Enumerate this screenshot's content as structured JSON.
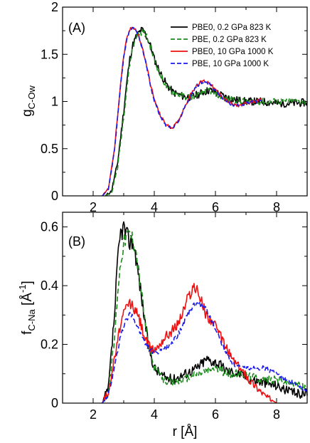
{
  "chart_data": [
    {
      "type": "line",
      "panel_label": "(A)",
      "ylabel_main": "g",
      "ylabel_sub": "C-Ow",
      "xlim": [
        1,
        9
      ],
      "ylim": [
        0,
        2
      ],
      "xticks": [
        2,
        4,
        6,
        8
      ],
      "yticks": [
        0,
        0.5,
        1,
        1.5,
        2
      ],
      "ytick_labels": [
        "0",
        "0.5",
        "1",
        "1.5",
        "2"
      ],
      "legend_position": "top-right",
      "series": [
        {
          "name": "PBE0, 0.2 GPa 823 K",
          "color": "#000000",
          "dash": "solid",
          "noise": 0.03,
          "x": [
            2.4,
            2.6,
            2.8,
            3.0,
            3.1,
            3.2,
            3.3,
            3.4,
            3.5,
            3.6,
            3.7,
            3.8,
            3.9,
            4.0,
            4.2,
            4.4,
            4.6,
            4.8,
            5.0,
            5.2,
            5.4,
            5.6,
            5.8,
            6.0,
            6.3,
            6.6,
            7.0,
            7.5,
            8.0,
            8.5,
            9.0
          ],
          "y": [
            0.0,
            0.05,
            0.35,
            0.9,
            1.2,
            1.45,
            1.6,
            1.68,
            1.73,
            1.76,
            1.72,
            1.65,
            1.57,
            1.45,
            1.3,
            1.18,
            1.1,
            1.07,
            1.05,
            1.05,
            1.07,
            1.1,
            1.12,
            1.1,
            1.05,
            1.02,
            1.0,
            1.0,
            0.98,
            0.98,
            0.99
          ]
        },
        {
          "name": "PBE, 0.2 GPa 823 K",
          "color": "#1a8a1a",
          "dash": "dashed",
          "noise": 0.025,
          "x": [
            2.4,
            2.6,
            2.8,
            3.0,
            3.1,
            3.2,
            3.3,
            3.4,
            3.5,
            3.6,
            3.7,
            3.8,
            3.9,
            4.0,
            4.2,
            4.4,
            4.6,
            4.8,
            5.0,
            5.2,
            5.4,
            5.6,
            5.8,
            6.0,
            6.3,
            6.6,
            7.0,
            7.5,
            8.0,
            8.5,
            9.0
          ],
          "y": [
            0.0,
            0.03,
            0.3,
            0.85,
            1.15,
            1.4,
            1.58,
            1.68,
            1.72,
            1.74,
            1.72,
            1.65,
            1.56,
            1.44,
            1.28,
            1.16,
            1.1,
            1.07,
            1.05,
            1.05,
            1.07,
            1.1,
            1.12,
            1.08,
            1.03,
            1.02,
            1.0,
            1.0,
            1.0,
            1.0,
            1.0
          ]
        },
        {
          "name": "PBE0, 10 GPa 1000 K",
          "color": "#ee1111",
          "dash": "solid",
          "noise": 0.012,
          "x": [
            2.3,
            2.5,
            2.7,
            2.9,
            3.0,
            3.1,
            3.2,
            3.3,
            3.4,
            3.5,
            3.6,
            3.7,
            3.8,
            3.9,
            4.0,
            4.2,
            4.4,
            4.6,
            4.8,
            5.0,
            5.2,
            5.4,
            5.6,
            5.8,
            6.0,
            6.2,
            6.4,
            6.6,
            6.8,
            7.0,
            7.5
          ],
          "y": [
            0.0,
            0.08,
            0.5,
            1.2,
            1.48,
            1.66,
            1.76,
            1.79,
            1.76,
            1.68,
            1.58,
            1.45,
            1.3,
            1.15,
            1.02,
            0.85,
            0.75,
            0.72,
            0.8,
            0.95,
            1.08,
            1.18,
            1.22,
            1.2,
            1.12,
            1.06,
            1.0,
            0.96,
            0.96,
            0.98,
            1.02
          ]
        },
        {
          "name": "PBE, 10 GPa 1000 K",
          "color": "#1a1aee",
          "dash": "dashed",
          "noise": 0.012,
          "x": [
            2.3,
            2.5,
            2.7,
            2.9,
            3.0,
            3.1,
            3.2,
            3.3,
            3.4,
            3.5,
            3.6,
            3.7,
            3.8,
            3.9,
            4.0,
            4.2,
            4.4,
            4.6,
            4.8,
            5.0,
            5.2,
            5.4,
            5.6,
            5.8,
            6.0,
            6.2,
            6.4,
            6.6,
            6.8,
            7.0,
            7.5
          ],
          "y": [
            0.0,
            0.07,
            0.48,
            1.18,
            1.46,
            1.65,
            1.75,
            1.78,
            1.75,
            1.67,
            1.57,
            1.44,
            1.29,
            1.14,
            1.01,
            0.84,
            0.74,
            0.72,
            0.79,
            0.94,
            1.07,
            1.17,
            1.21,
            1.19,
            1.11,
            1.05,
            0.99,
            0.96,
            0.96,
            0.98,
            1.01
          ]
        }
      ]
    },
    {
      "type": "line",
      "panel_label": "(B)",
      "ylabel_main": "f",
      "ylabel_sub": "C-Na",
      "ylabel_rest": " [Å",
      "ylabel_sup": "-1",
      "ylabel_end": "]",
      "xlabel": "r [Å]",
      "xlim": [
        1,
        9
      ],
      "ylim": [
        0,
        0.65
      ],
      "xticks": [
        2,
        4,
        6,
        8
      ],
      "yticks": [
        0,
        0.2,
        0.4,
        0.6
      ],
      "ytick_labels": [
        "0",
        "0.2",
        "0.4",
        "0.6"
      ],
      "series": [
        {
          "name": "PBE0, 0.2 GPa 823 K",
          "color": "#000000",
          "dash": "solid",
          "noise": 0.035,
          "x": [
            2.3,
            2.5,
            2.7,
            2.8,
            2.9,
            3.0,
            3.1,
            3.2,
            3.3,
            3.4,
            3.6,
            3.8,
            4.0,
            4.3,
            4.6,
            5.0,
            5.4,
            5.7,
            6.0,
            6.4,
            6.8,
            7.2,
            7.6,
            8.0,
            8.4,
            8.8,
            9.0
          ],
          "y": [
            0.0,
            0.05,
            0.3,
            0.48,
            0.58,
            0.6,
            0.57,
            0.55,
            0.55,
            0.5,
            0.35,
            0.2,
            0.12,
            0.09,
            0.08,
            0.1,
            0.12,
            0.15,
            0.14,
            0.11,
            0.1,
            0.08,
            0.07,
            0.06,
            0.04,
            0.03,
            0.04
          ]
        },
        {
          "name": "PBE, 0.2 GPa 823 K",
          "color": "#1a8a1a",
          "dash": "dashed",
          "noise": 0.028,
          "x": [
            2.3,
            2.5,
            2.7,
            2.8,
            2.9,
            3.0,
            3.1,
            3.2,
            3.3,
            3.4,
            3.6,
            3.8,
            4.0,
            4.3,
            4.6,
            5.0,
            5.4,
            5.7,
            6.0,
            6.4,
            6.8,
            7.2,
            7.6,
            8.0,
            8.4,
            8.8,
            9.0
          ],
          "y": [
            0.0,
            0.04,
            0.22,
            0.38,
            0.48,
            0.55,
            0.57,
            0.58,
            0.56,
            0.52,
            0.36,
            0.2,
            0.12,
            0.08,
            0.07,
            0.08,
            0.1,
            0.11,
            0.12,
            0.1,
            0.1,
            0.09,
            0.08,
            0.08,
            0.07,
            0.06,
            0.05
          ]
        },
        {
          "name": "PBE0, 10 GPa 1000 K",
          "color": "#ee1111",
          "dash": "solid",
          "noise": 0.028,
          "x": [
            2.3,
            2.5,
            2.7,
            2.9,
            3.1,
            3.2,
            3.3,
            3.5,
            3.7,
            3.9,
            4.1,
            4.3,
            4.5,
            4.7,
            4.9,
            5.1,
            5.3,
            5.5,
            5.7,
            5.9,
            6.2,
            6.5,
            6.8,
            7.1,
            7.4,
            7.7,
            8.0
          ],
          "y": [
            0.0,
            0.04,
            0.15,
            0.27,
            0.33,
            0.34,
            0.33,
            0.29,
            0.22,
            0.18,
            0.19,
            0.22,
            0.24,
            0.26,
            0.3,
            0.36,
            0.4,
            0.36,
            0.3,
            0.28,
            0.22,
            0.16,
            0.12,
            0.08,
            0.05,
            0.02,
            0.0
          ]
        },
        {
          "name": "PBE, 10 GPa 1000 K",
          "color": "#1a1aee",
          "dash": "dashed",
          "noise": 0.015,
          "x": [
            2.3,
            2.5,
            2.7,
            2.9,
            3.1,
            3.2,
            3.3,
            3.5,
            3.7,
            3.9,
            4.1,
            4.4,
            4.7,
            5.0,
            5.2,
            5.4,
            5.6,
            5.8,
            6.0,
            6.3,
            6.6,
            6.9,
            7.2,
            7.6,
            8.0,
            8.5,
            9.0
          ],
          "y": [
            0.0,
            0.03,
            0.12,
            0.23,
            0.29,
            0.3,
            0.29,
            0.25,
            0.2,
            0.18,
            0.17,
            0.19,
            0.22,
            0.28,
            0.32,
            0.34,
            0.33,
            0.3,
            0.25,
            0.18,
            0.13,
            0.12,
            0.12,
            0.12,
            0.1,
            0.07,
            0.04
          ]
        }
      ]
    }
  ]
}
